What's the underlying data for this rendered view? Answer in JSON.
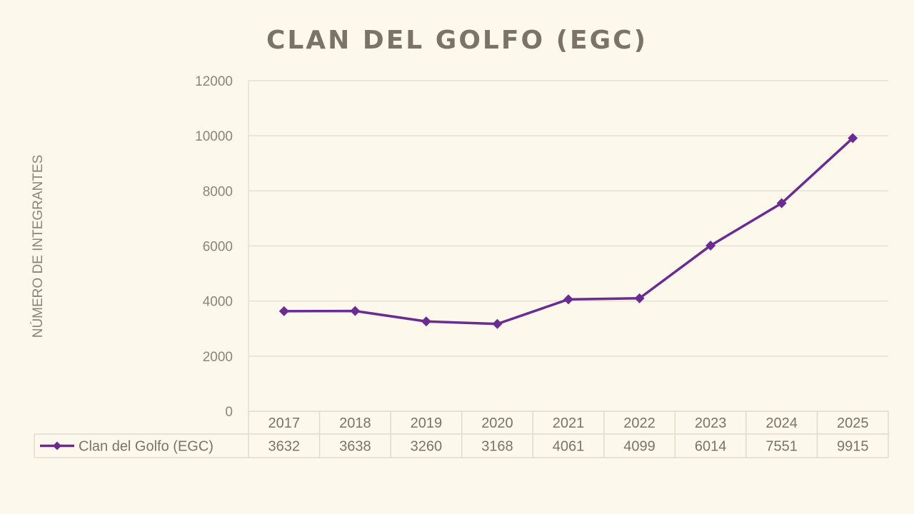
{
  "chart_data": {
    "type": "line",
    "title": "CLAN DEL GOLFO (EGC)",
    "ylabel": "NÚMERO DE INTEGRANTES",
    "xlabel": "",
    "categories": [
      "2017",
      "2018",
      "2019",
      "2020",
      "2021",
      "2022",
      "2023",
      "2024",
      "2025"
    ],
    "series": [
      {
        "name": "Clan del Golfo (EGC)",
        "values": [
          3632,
          3638,
          3260,
          3168,
          4061,
          4099,
          6014,
          7551,
          9915
        ],
        "color": "#6a2c91"
      }
    ],
    "ylim": [
      0,
      12000
    ],
    "yticks": [
      0,
      2000,
      4000,
      6000,
      8000,
      10000,
      12000
    ],
    "grid": true,
    "legend": "data-table-left",
    "data_table": true
  }
}
